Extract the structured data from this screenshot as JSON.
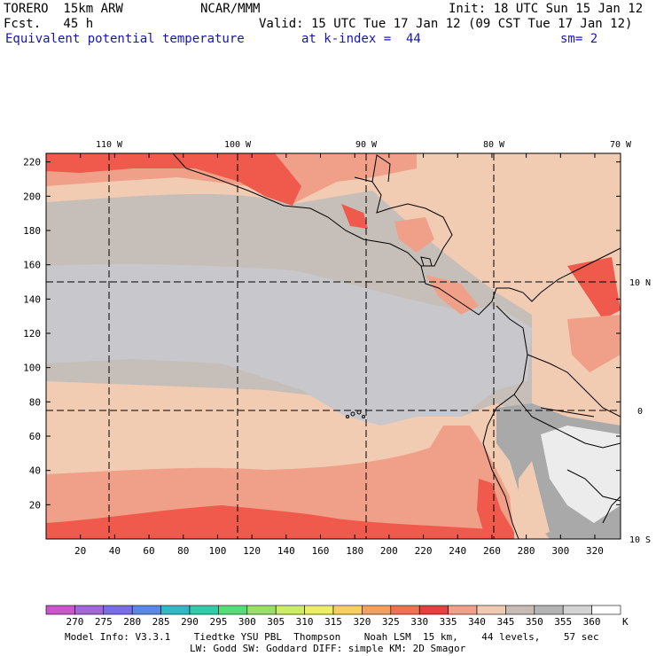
{
  "header": {
    "model": "TORERO  15km ARW",
    "org": "NCAR/MMM",
    "init": "Init: 18 UTC Sun 15 Jan 12",
    "fcst": "Fcst.   45 h",
    "valid": "Valid: 15 UTC Tue 17 Jan 12 (09 CST Tue 17 Jan 12)",
    "field": "Equivalent potential temperature",
    "level": "at k-index =  44",
    "smooth": "sm= 2"
  },
  "map": {
    "lon_labels": [
      "110 W",
      "100 W",
      "90 W",
      "80 W",
      "70 W"
    ],
    "lat_labels": [
      "10 N",
      "0",
      "10 S"
    ],
    "y_ticks": [
      "220",
      "200",
      "180",
      "160",
      "140",
      "120",
      "100",
      "80",
      "60",
      "40",
      "20"
    ],
    "x_ticks": [
      "20",
      "40",
      "60",
      "80",
      "100",
      "120",
      "140",
      "160",
      "180",
      "200",
      "220",
      "240",
      "260",
      "280",
      "300",
      "320"
    ],
    "colors": {
      "cool": "#c8c8cc",
      "gray": "#c6bfb9",
      "tan": "#f2cbb3",
      "salmon": "#f0a088",
      "red": "#f05a4c",
      "darkgray": "#a9a9a9",
      "lightgray": "#ececec"
    }
  },
  "colorbar": {
    "labels": [
      "270",
      "275",
      "280",
      "285",
      "290",
      "295",
      "300",
      "305",
      "310",
      "315",
      "320",
      "325",
      "330",
      "335",
      "340",
      "345",
      "350",
      "355",
      "360"
    ],
    "unit": "K",
    "colors": [
      "#cc55cc",
      "#a366d9",
      "#7a6ee8",
      "#5a88e8",
      "#33b8c8",
      "#33ccaa",
      "#55dd77",
      "#99e066",
      "#ccee66",
      "#eeee66",
      "#f8d062",
      "#f4a060",
      "#f07052",
      "#e84040",
      "#f3a088",
      "#f1cab2",
      "#c8bcb6",
      "#b4b4b4",
      "#d4d4d4",
      "#ffffff"
    ]
  },
  "footer": {
    "line1": "Model Info: V3.3.1    Tiedtke YSU PBL  Thompson    Noah LSM  15 km,    44 levels,    57 sec",
    "line2": "LW: Godd SW: Goddard DIFF: simple KM: 2D Smagor"
  }
}
